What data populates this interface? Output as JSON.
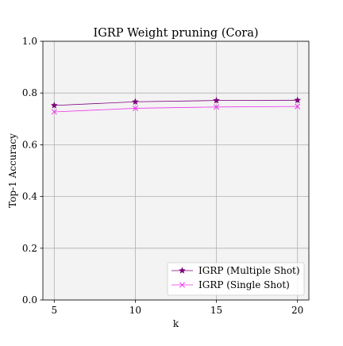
{
  "chart_data": {
    "type": "line",
    "title": "IGRP Weight pruning (Cora)",
    "xlabel": "k",
    "ylabel": "Top-1 Accuracy",
    "x": [
      5,
      10,
      15,
      20
    ],
    "xticks": [
      5,
      10,
      15,
      20
    ],
    "xtick_labels": [
      "5",
      "10",
      "15",
      "20"
    ],
    "xlim": [
      4.3,
      20.7
    ],
    "ylim": [
      0.0,
      1.0
    ],
    "yticks": [
      0.0,
      0.2,
      0.4,
      0.6,
      0.8,
      1.0
    ],
    "ytick_labels": [
      "0.0",
      "0.2",
      "0.4",
      "0.6",
      "0.8",
      "1.0"
    ],
    "grid": true,
    "legend_position": "lower-right",
    "series": [
      {
        "name": "IGRP (Multiple Shot)",
        "values": [
          0.752,
          0.766,
          0.771,
          0.772
        ],
        "color": "#7a007a",
        "marker": "star"
      },
      {
        "name": "IGRP (Single Shot)",
        "values": [
          0.727,
          0.741,
          0.746,
          0.748
        ],
        "color": "#ee33ee",
        "marker": "x"
      }
    ],
    "colors": {
      "plot_background": "#f3f3f3",
      "grid": "#b0b0b0",
      "axes": "#000000"
    }
  }
}
